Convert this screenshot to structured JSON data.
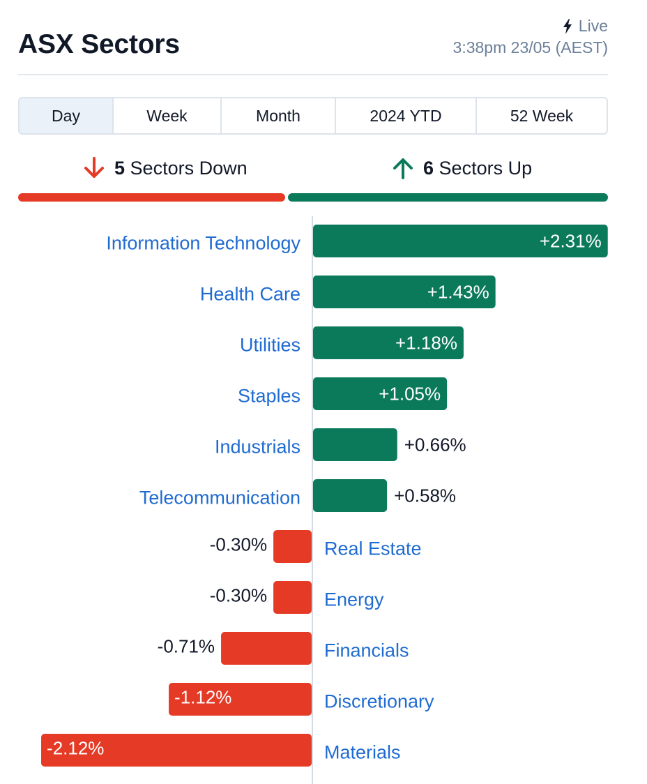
{
  "header": {
    "title": "ASX Sectors",
    "live_label": "Live",
    "timestamp": "3:38pm 23/05 (AEST)"
  },
  "tabs": [
    {
      "label": "Day",
      "active": true
    },
    {
      "label": "Week",
      "active": false
    },
    {
      "label": "Month",
      "active": false
    },
    {
      "label": "2024 YTD",
      "active": false
    },
    {
      "label": "52 Week",
      "active": false
    }
  ],
  "summary": {
    "down_count": "5",
    "down_text": "Sectors Down",
    "up_count": "6",
    "up_text": "Sectors Up",
    "down_icon": "arrow-down-icon",
    "up_icon": "arrow-up-icon"
  },
  "colors": {
    "positive": "#0b7a5b",
    "negative": "#e43a26",
    "label_link": "#1f6bd1",
    "muted": "#6b7f99"
  },
  "chart_data": {
    "type": "bar",
    "orientation": "horizontal",
    "categories": [
      "Information Technology",
      "Health Care",
      "Utilities",
      "Staples",
      "Industrials",
      "Telecommunication",
      "Real Estate",
      "Energy",
      "Financials",
      "Discretionary",
      "Materials"
    ],
    "values": [
      2.31,
      1.43,
      1.18,
      1.05,
      0.66,
      0.58,
      -0.3,
      -0.3,
      -0.71,
      -1.12,
      -2.12
    ],
    "value_labels": [
      "+2.31%",
      "+1.43%",
      "+1.18%",
      "+1.05%",
      "+0.66%",
      "+0.58%",
      "-0.30%",
      "-0.30%",
      "-0.71%",
      "-1.12%",
      "-2.12%"
    ],
    "unit": "%",
    "grid": false,
    "legend": "none"
  }
}
